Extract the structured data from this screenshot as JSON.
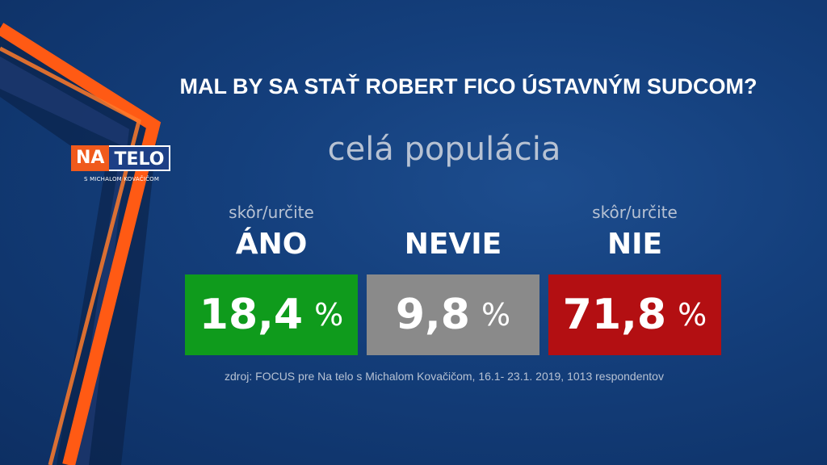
{
  "logo": {
    "na": "NA",
    "telo": "TELO",
    "sub": "S MICHALOM KOVAČIČOM"
  },
  "question": "MAL BY SA STAŤ ROBERT FICO ÚSTAVNÝM SUDCOM?",
  "subtitle": "celá populácia",
  "chart_data": {
    "type": "bar",
    "title": "MAL BY SA STAŤ ROBERT FICO ÚSTAVNÝM SUDCOM?",
    "subtitle": "celá populácia",
    "categories": [
      "ÁNO",
      "NEVIE",
      "NIE"
    ],
    "qualifiers": [
      "skôr/určite",
      "",
      "skôr/určite"
    ],
    "values": [
      18.4,
      9.8,
      71.8
    ],
    "value_labels": [
      "18,4",
      "9,8",
      "71,8"
    ],
    "unit": "%",
    "colors": [
      "#0f9b1c",
      "#8a8a8a",
      "#b30f12"
    ],
    "source": "zdroj: FOCUS pre Na telo s Michalom Kovačičom, 16.1- 23.1. 2019, 1013 respondentov"
  }
}
